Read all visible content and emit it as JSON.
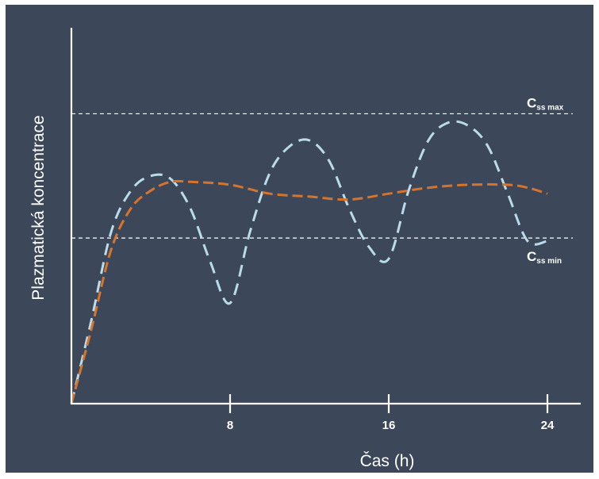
{
  "chart_data": {
    "type": "line",
    "title": "",
    "xlabel": "Čas (h)",
    "ylabel": "Plazmatická koncentrace",
    "xlim": [
      0,
      25.5
    ],
    "ylim": [
      0,
      100
    ],
    "x_ticks": [
      {
        "value": 8,
        "label": "8"
      },
      {
        "value": 16,
        "label": "16"
      },
      {
        "value": 24,
        "label": "24"
      }
    ],
    "grid": false,
    "legend": "none",
    "reference_lines": [
      {
        "y": 98,
        "main": "C",
        "sub": "ss max",
        "color": "#ffffff"
      },
      {
        "y": 56,
        "main": "C",
        "sub": "ss min",
        "color": "#ffffff"
      }
    ],
    "series": [
      {
        "color": "#b9dcea",
        "x": [
          0,
          1,
          2,
          3,
          4,
          5,
          6,
          7,
          8,
          9,
          10,
          11,
          12,
          13,
          14,
          15,
          16,
          17,
          18,
          19,
          20,
          21,
          22,
          23,
          24
        ],
        "y": [
          0,
          28,
          58,
          72,
          77,
          76,
          66,
          48,
          34,
          58,
          78,
          87,
          89,
          82,
          66,
          53,
          49,
          72,
          89,
          95,
          94,
          87,
          71,
          55,
          55
        ]
      },
      {
        "color": "#d7742c",
        "x": [
          0,
          1,
          2,
          3,
          4,
          5,
          6,
          8,
          10,
          12,
          14,
          16,
          18,
          20,
          22,
          23,
          24
        ],
        "y": [
          0,
          25,
          52,
          66,
          72,
          75,
          75,
          74,
          71,
          70,
          69,
          71,
          73,
          74,
          74,
          73,
          71
        ]
      }
    ]
  }
}
